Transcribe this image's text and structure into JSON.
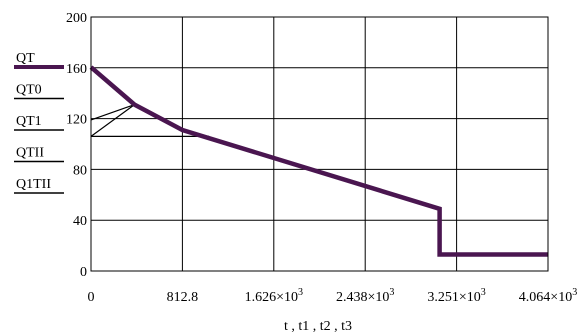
{
  "chart_data": {
    "type": "line",
    "title": "",
    "xlabel": "t , t1 , t2 , t3",
    "ylabel": "",
    "xlim": [
      0,
      4064
    ],
    "ylim": [
      0,
      200
    ],
    "grid": true,
    "legend_position": "left",
    "x_ticks": [
      {
        "value": 0,
        "label": "0"
      },
      {
        "value": 812.8,
        "label": "812.8"
      },
      {
        "value": 1625.6,
        "label": "1.626×10",
        "exp": "3"
      },
      {
        "value": 2438.4,
        "label": "2.438×10",
        "exp": "3"
      },
      {
        "value": 3251.2,
        "label": "3.251×10",
        "exp": "3"
      },
      {
        "value": 4064,
        "label": "4.064×10",
        "exp": "3"
      }
    ],
    "y_ticks": [
      {
        "value": 0,
        "label": "0"
      },
      {
        "value": 40,
        "label": "40"
      },
      {
        "value": 80,
        "label": "80"
      },
      {
        "value": 120,
        "label": "120"
      },
      {
        "value": 160,
        "label": "160"
      },
      {
        "value": 200,
        "label": "200"
      }
    ],
    "series": [
      {
        "name": "QT",
        "color": "#4a1650",
        "width": 4.5,
        "x": [
          0,
          387,
          813,
          3100,
          3100,
          4064
        ],
        "y": [
          160.5,
          131,
          111,
          49,
          13,
          13
        ]
      },
      {
        "name": "QT0",
        "color": "#000000",
        "width": 1.2,
        "x": [
          0,
          387,
          813
        ],
        "y": [
          119,
          131,
          111
        ]
      },
      {
        "name": "QT1",
        "color": "#000000",
        "width": 1.2,
        "x": [
          0,
          387
        ],
        "y": [
          106,
          131
        ]
      },
      {
        "name": "QTII",
        "color": "#000000",
        "width": 1.2,
        "x": [
          0,
          1050
        ],
        "y": [
          106,
          106
        ]
      },
      {
        "name": "Q1TII",
        "color": "#000000",
        "width": 1.2,
        "x": [],
        "y": []
      }
    ],
    "legend": [
      {
        "name": "QT",
        "color": "#4a1650",
        "width": 4
      },
      {
        "name": "QT0",
        "color": "#000000",
        "width": 1.5
      },
      {
        "name": "QT1",
        "color": "#000000",
        "width": 1.5
      },
      {
        "name": "QTII",
        "color": "#000000",
        "width": 1.5
      },
      {
        "name": "Q1TII",
        "color": "#000000",
        "width": 1.5
      }
    ]
  }
}
